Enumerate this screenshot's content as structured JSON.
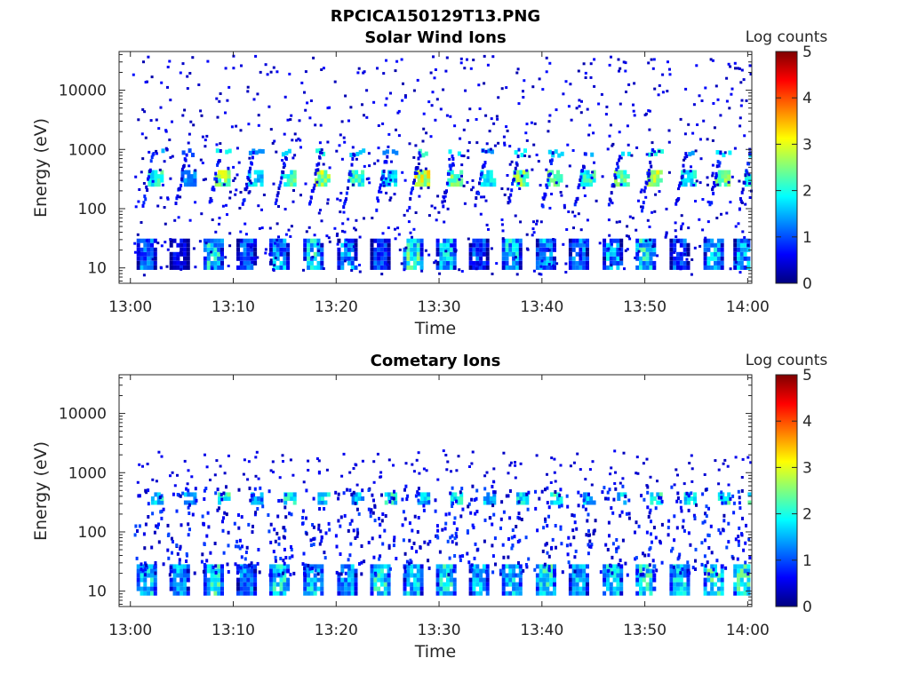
{
  "figure_title": "RPCICA150129T13.PNG",
  "colormap": [
    "#00007f",
    "#0000ff",
    "#007fff",
    "#00ffff",
    "#7fff7f",
    "#ffff00",
    "#ff7f00",
    "#ff0000",
    "#7f0000"
  ],
  "chart_data": [
    {
      "type": "heatmap",
      "title": "Solar Wind Ions",
      "xlabel": "Time",
      "ylabel": "Energy (eV)",
      "x_ticks": [
        "13:00",
        "13:10",
        "13:20",
        "13:30",
        "13:40",
        "13:50",
        "14:00"
      ],
      "y_ticks": [
        "10",
        "100",
        "1000",
        "10000"
      ],
      "y_scale": "log",
      "colorbar": {
        "label": "Log counts",
        "ticks": [
          "0",
          "1",
          "2",
          "3",
          "4",
          "5"
        ],
        "range": [
          0,
          5
        ]
      },
      "bursts": [
        {
          "t": 1.5,
          "level": 2.2
        },
        {
          "t": 4.7,
          "level": 1.4
        },
        {
          "t": 8.0,
          "level": 2.8
        },
        {
          "t": 11.2,
          "level": 1.9
        },
        {
          "t": 14.4,
          "level": 2.4
        },
        {
          "t": 17.7,
          "level": 2.9
        },
        {
          "t": 21.0,
          "level": 2.3
        },
        {
          "t": 24.2,
          "level": 1.8
        },
        {
          "t": 27.4,
          "level": 3.1
        },
        {
          "t": 30.6,
          "level": 2.6
        },
        {
          "t": 33.8,
          "level": 1.9
        },
        {
          "t": 37.0,
          "level": 2.7
        },
        {
          "t": 40.3,
          "level": 2.4
        },
        {
          "t": 43.5,
          "level": 2.2
        },
        {
          "t": 46.8,
          "level": 2.5
        },
        {
          "t": 50.0,
          "level": 2.9
        },
        {
          "t": 53.3,
          "level": 2.0
        },
        {
          "t": 56.6,
          "level": 2.6
        },
        {
          "t": 59.5,
          "level": 2.4
        }
      ]
    },
    {
      "type": "heatmap",
      "title": "Cometary Ions",
      "xlabel": "Time",
      "ylabel": "Energy (eV)",
      "x_ticks": [
        "13:00",
        "13:10",
        "13:20",
        "13:30",
        "13:40",
        "13:50",
        "14:00"
      ],
      "y_ticks": [
        "10",
        "100",
        "1000",
        "10000"
      ],
      "y_scale": "log",
      "colorbar": {
        "label": "Log counts",
        "ticks": [
          "0",
          "1",
          "2",
          "3",
          "4",
          "5"
        ],
        "range": [
          0,
          5
        ]
      },
      "bursts": [
        {
          "t": 1.5,
          "level": 2.3
        },
        {
          "t": 4.7,
          "level": 2.0
        },
        {
          "t": 8.0,
          "level": 2.6
        },
        {
          "t": 11.2,
          "level": 1.8
        },
        {
          "t": 14.4,
          "level": 2.4
        },
        {
          "t": 17.7,
          "level": 2.2
        },
        {
          "t": 21.0,
          "level": 2.0
        },
        {
          "t": 24.2,
          "level": 2.5
        },
        {
          "t": 27.4,
          "level": 2.2
        },
        {
          "t": 30.6,
          "level": 2.4
        },
        {
          "t": 33.8,
          "level": 2.0
        },
        {
          "t": 37.0,
          "level": 2.3
        },
        {
          "t": 40.3,
          "level": 2.6
        },
        {
          "t": 43.5,
          "level": 2.1
        },
        {
          "t": 46.8,
          "level": 2.3
        },
        {
          "t": 50.0,
          "level": 2.5
        },
        {
          "t": 53.3,
          "level": 2.2
        },
        {
          "t": 56.6,
          "level": 2.7
        },
        {
          "t": 59.5,
          "level": 2.6
        }
      ]
    }
  ]
}
